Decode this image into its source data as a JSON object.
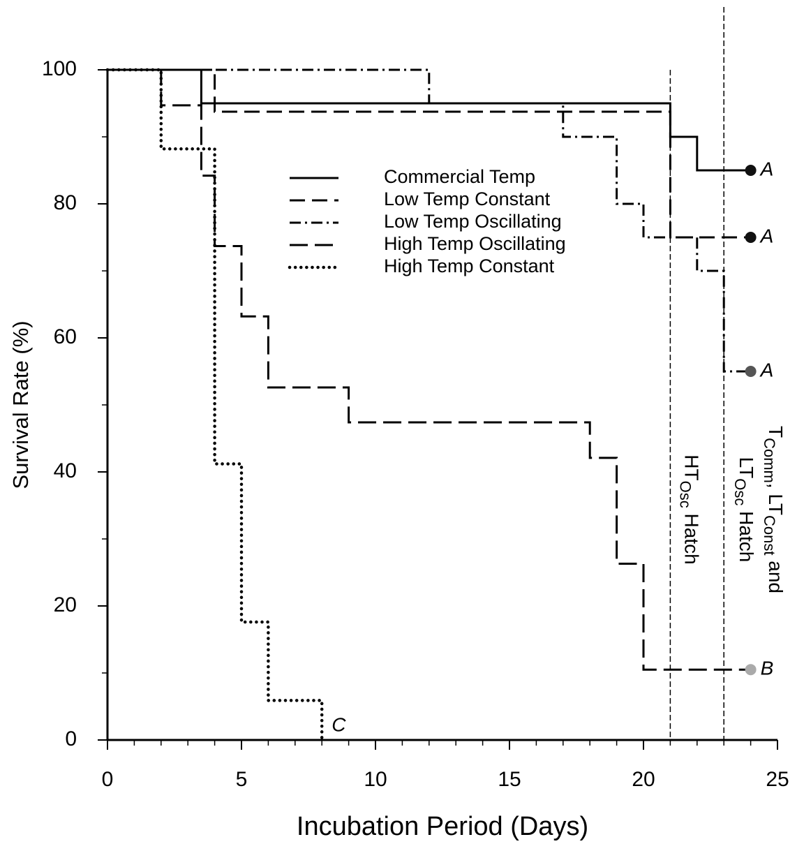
{
  "chart_data": {
    "type": "step",
    "xlabel": "Incubation Period (Days)",
    "ylabel": "Survival Rate (%)",
    "xlim": [
      0,
      25
    ],
    "ylim": [
      0,
      100
    ],
    "xticks": [
      0,
      5,
      10,
      15,
      20,
      25
    ],
    "yticks": [
      0,
      20,
      40,
      60,
      80,
      100
    ],
    "xminorticks": [
      1,
      2,
      3,
      4,
      6,
      7,
      8,
      9,
      11,
      12,
      13,
      14,
      16,
      17,
      18,
      19,
      21,
      22,
      23,
      24
    ],
    "yminorticks": [
      10,
      30,
      50,
      70,
      90
    ],
    "series": [
      {
        "name": "Commercial Temp",
        "color": "#000000",
        "dash": "solid",
        "x": [
          0,
          3.5,
          21,
          22,
          24
        ],
        "values": [
          100,
          95,
          90,
          85,
          85
        ],
        "marker_color": "#111111",
        "end_label": "A"
      },
      {
        "name": "Low Temp Constant",
        "color": "#000000",
        "dash": "dashed",
        "x": [
          0,
          4,
          21,
          24
        ],
        "values": [
          100,
          93.75,
          75,
          75
        ],
        "marker_color": "#111111",
        "end_label": "A"
      },
      {
        "name": "Low Temp Oscillating",
        "color": "#000000",
        "dash": "dashdot",
        "x": [
          0,
          12,
          17,
          19,
          20,
          22,
          23,
          24
        ],
        "values": [
          100,
          95,
          90,
          80,
          75,
          70,
          55,
          55
        ],
        "marker_color": "#555555",
        "end_label": "A"
      },
      {
        "name": "High Temp Oscillating",
        "color": "#000000",
        "dash": "longdash",
        "x": [
          0,
          2,
          3.5,
          4,
          5,
          6,
          9,
          18,
          19,
          20,
          24
        ],
        "values": [
          100,
          94.7,
          84.2,
          73.7,
          63.2,
          52.6,
          47.4,
          42.1,
          26.3,
          10.5,
          10.5
        ],
        "marker_color": "#aaaaaa",
        "end_label": "B"
      },
      {
        "name": "High Temp Constant",
        "color": "#000000",
        "dash": "dotted",
        "x": [
          0,
          2,
          4,
          5,
          6,
          8
        ],
        "values": [
          100,
          88.2,
          41.2,
          17.6,
          5.9,
          0
        ],
        "end_label": "C"
      }
    ],
    "vlines": [
      {
        "x": 21,
        "label_lines": [
          [
            "HT",
            "Osc",
            " Hatch"
          ]
        ]
      },
      {
        "x": 23,
        "label_lines": [
          [
            "T",
            "Comm",
            ", LT",
            "Const",
            " and"
          ],
          [
            "LT",
            "Osc",
            " Hatch"
          ]
        ]
      }
    ]
  }
}
